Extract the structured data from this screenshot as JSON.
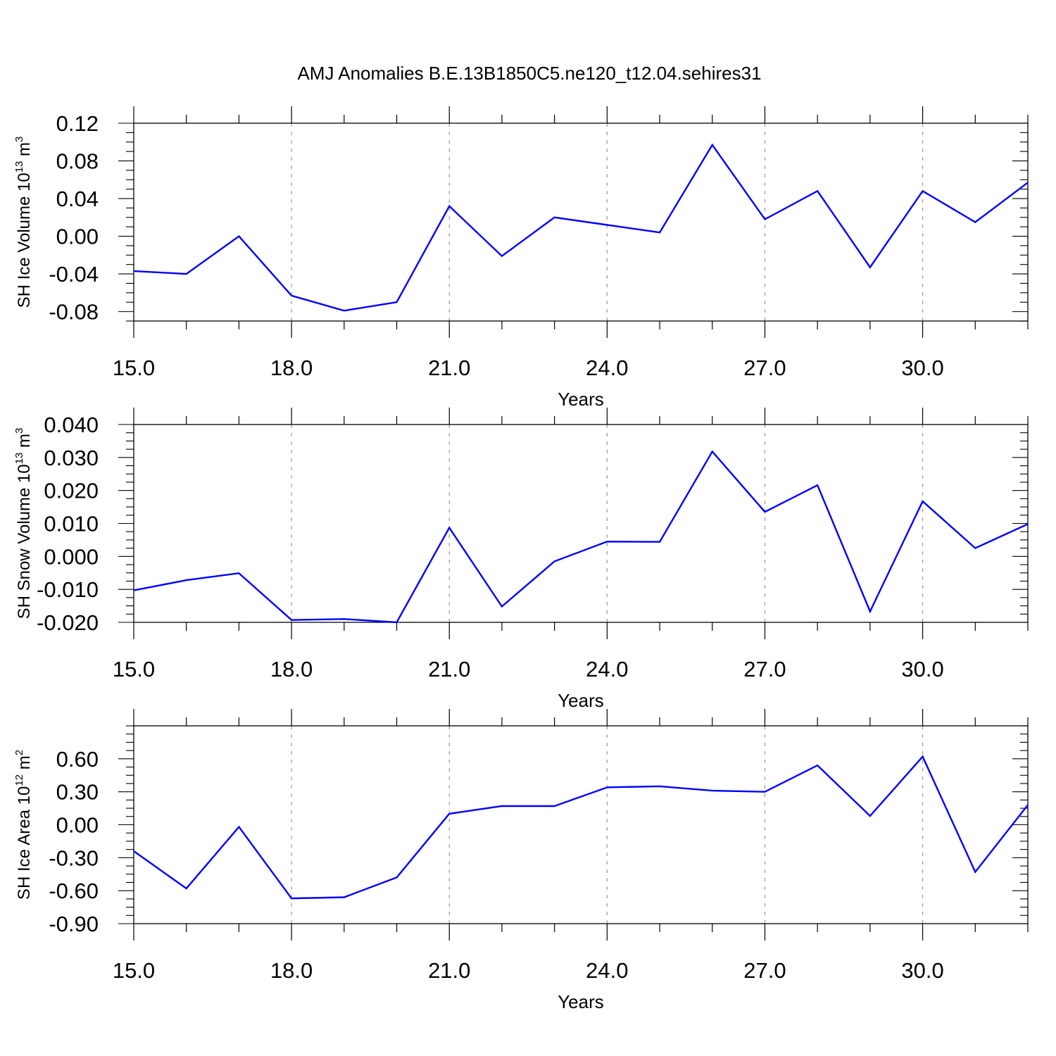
{
  "title": "AMJ Anomalies B.E.13B1850C5.ne120_t12.04.sehires31",
  "colors": {
    "line": "#0000ff",
    "axis": "#000000",
    "grid": "#999999"
  },
  "chart_data": [
    {
      "type": "line",
      "ylabel": {
        "main": "SH Ice Volume 10",
        "exp": "13",
        "unit": " m",
        "unit_exp": "3"
      },
      "xlabel": "Years",
      "xlim": [
        15,
        32
      ],
      "ylim": [
        -0.09,
        0.12
      ],
      "yticks": [
        -0.08,
        -0.04,
        0.0,
        0.04,
        0.08,
        0.12
      ],
      "ytick_labels": [
        "-0.08",
        "-0.04",
        "0.00",
        "0.04",
        "0.08",
        "0.12"
      ],
      "grid": "vertical dashed at major x ticks",
      "x": [
        15,
        16,
        17,
        18,
        19,
        20,
        21,
        22,
        23,
        24,
        25,
        26,
        27,
        28,
        29,
        30,
        31,
        32
      ],
      "series": [
        {
          "values": [
            -0.037,
            -0.04,
            0.0,
            -0.063,
            -0.079,
            -0.07,
            0.032,
            -0.021,
            0.02,
            0.012,
            0.004,
            0.097,
            0.018,
            0.048,
            -0.033,
            0.048,
            0.015,
            0.057
          ]
        }
      ]
    },
    {
      "type": "line",
      "ylabel": {
        "main": "SH Snow Volume 10",
        "exp": "13",
        "unit": " m",
        "unit_exp": "3"
      },
      "xlabel": "Years",
      "xlim": [
        15,
        32
      ],
      "ylim": [
        -0.02,
        0.04
      ],
      "yticks": [
        -0.02,
        -0.01,
        0.0,
        0.01,
        0.02,
        0.03,
        0.04
      ],
      "ytick_labels": [
        "-0.020",
        "-0.010",
        "0.000",
        "0.010",
        "0.020",
        "0.030",
        "0.040"
      ],
      "grid": "vertical dashed at major x ticks",
      "x": [
        15,
        16,
        17,
        18,
        19,
        20,
        21,
        22,
        23,
        24,
        25,
        26,
        27,
        28,
        29,
        30,
        31,
        32
      ],
      "series": [
        {
          "values": [
            -0.0103,
            -0.0072,
            -0.0051,
            -0.0193,
            -0.019,
            -0.02,
            0.0087,
            -0.0152,
            -0.0015,
            0.0045,
            0.0044,
            0.0318,
            0.0135,
            0.0216,
            -0.0167,
            0.0167,
            0.0025,
            0.0098
          ]
        }
      ]
    },
    {
      "type": "line",
      "ylabel": {
        "main": "SH Ice Area 10",
        "exp": "12",
        "unit": " m",
        "unit_exp": "2"
      },
      "xlabel": "Years",
      "xlim": [
        15,
        32
      ],
      "ylim": [
        -0.9,
        0.9
      ],
      "yticks": [
        -0.9,
        -0.6,
        -0.3,
        0.0,
        0.3,
        0.6
      ],
      "ytick_labels": [
        "-0.90",
        "-0.60",
        "-0.30",
        "0.00",
        "0.30",
        "0.60"
      ],
      "grid": "vertical dashed at major x ticks",
      "x": [
        15,
        16,
        17,
        18,
        19,
        20,
        21,
        22,
        23,
        24,
        25,
        26,
        27,
        28,
        29,
        30,
        31,
        32
      ],
      "series": [
        {
          "values": [
            -0.24,
            -0.58,
            -0.02,
            -0.67,
            -0.66,
            -0.48,
            0.1,
            0.17,
            0.17,
            0.34,
            0.35,
            0.31,
            0.3,
            0.54,
            0.08,
            0.62,
            -0.43,
            0.18
          ]
        }
      ]
    }
  ],
  "xticks": [
    15,
    18,
    21,
    24,
    27,
    30
  ],
  "xtick_labels": [
    "15.0",
    "18.0",
    "21.0",
    "24.0",
    "27.0",
    "30.0"
  ]
}
